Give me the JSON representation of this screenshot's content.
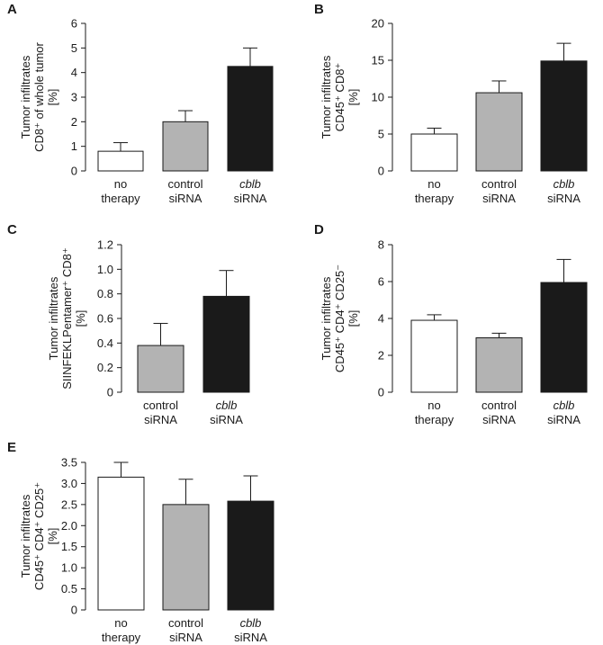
{
  "chart_data": [
    {
      "panel": "A",
      "type": "bar",
      "ylabel_lines": [
        "Tumor infiltrates",
        "CD8⁺ of whole tumor",
        "[%]"
      ],
      "ylim": [
        0,
        6
      ],
      "yticks": [
        "0",
        "1",
        "2",
        "3",
        "4",
        "5",
        "6"
      ],
      "categories": [
        {
          "line1": "no",
          "line2": "therapy",
          "italic": false
        },
        {
          "line1": "control",
          "line2": "siRNA",
          "italic": false
        },
        {
          "line1": "cblb",
          "line2": "siRNA",
          "italic": true
        }
      ],
      "values": [
        0.8,
        2.0,
        4.25
      ],
      "errors": [
        0.35,
        0.45,
        0.75
      ],
      "colors": [
        "#ffffff",
        "#b3b3b3",
        "#1a1a1a"
      ]
    },
    {
      "panel": "B",
      "type": "bar",
      "ylabel_lines": [
        "Tumor infiltrates",
        "CD45⁺ CD8⁺",
        "[%]"
      ],
      "ylim": [
        0,
        20
      ],
      "yticks": [
        "0",
        "5",
        "10",
        "15",
        "20"
      ],
      "categories": [
        {
          "line1": "no",
          "line2": "therapy",
          "italic": false
        },
        {
          "line1": "control",
          "line2": "siRNA",
          "italic": false
        },
        {
          "line1": "cblb",
          "line2": "siRNA",
          "italic": true
        }
      ],
      "values": [
        5.0,
        10.6,
        14.9
      ],
      "errors": [
        0.8,
        1.6,
        2.4
      ],
      "colors": [
        "#ffffff",
        "#b3b3b3",
        "#1a1a1a"
      ]
    },
    {
      "panel": "C",
      "type": "bar",
      "ylabel_lines": [
        "Tumor infiltrates",
        "SIINFEKLPentamer⁺ CD8⁺",
        "[%]"
      ],
      "ylim": [
        0,
        1.2
      ],
      "yticks": [
        "0",
        "0.2",
        "0.4",
        "0.6",
        "0.8",
        "1.0",
        "1.2"
      ],
      "categories": [
        {
          "line1": "control",
          "line2": "siRNA",
          "italic": false
        },
        {
          "line1": "cblb",
          "line2": "siRNA",
          "italic": true
        }
      ],
      "values": [
        0.38,
        0.78
      ],
      "errors": [
        0.18,
        0.21
      ],
      "colors": [
        "#b3b3b3",
        "#1a1a1a"
      ]
    },
    {
      "panel": "D",
      "type": "bar",
      "ylabel_lines": [
        "Tumor infiltrates",
        "CD45⁺ CD4⁺ CD25⁻",
        "[%]"
      ],
      "ylim": [
        0,
        8
      ],
      "yticks": [
        "0",
        "2",
        "4",
        "6",
        "8"
      ],
      "categories": [
        {
          "line1": "no",
          "line2": "therapy",
          "italic": false
        },
        {
          "line1": "control",
          "line2": "siRNA",
          "italic": false
        },
        {
          "line1": "cblb",
          "line2": "siRNA",
          "italic": true
        }
      ],
      "values": [
        3.9,
        2.95,
        5.95
      ],
      "errors": [
        0.3,
        0.25,
        1.25
      ],
      "colors": [
        "#ffffff",
        "#b3b3b3",
        "#1a1a1a"
      ]
    },
    {
      "panel": "E",
      "type": "bar",
      "ylabel_lines": [
        "Tumor infiltrates",
        "CD45⁺ CD4⁺ CD25⁺",
        "[%]"
      ],
      "ylim": [
        0,
        3.5
      ],
      "yticks": [
        "0",
        "0.5",
        "1.0",
        "1.5",
        "2.0",
        "2.5",
        "3.0",
        "3.5"
      ],
      "categories": [
        {
          "line1": "no",
          "line2": "therapy",
          "italic": false
        },
        {
          "line1": "control",
          "line2": "siRNA",
          "italic": false
        },
        {
          "line1": "cblb",
          "line2": "siRNA",
          "italic": true
        }
      ],
      "values": [
        3.15,
        2.5,
        2.58
      ],
      "errors": [
        0.35,
        0.6,
        0.6
      ],
      "colors": [
        "#ffffff",
        "#b3b3b3",
        "#1a1a1a"
      ]
    }
  ]
}
